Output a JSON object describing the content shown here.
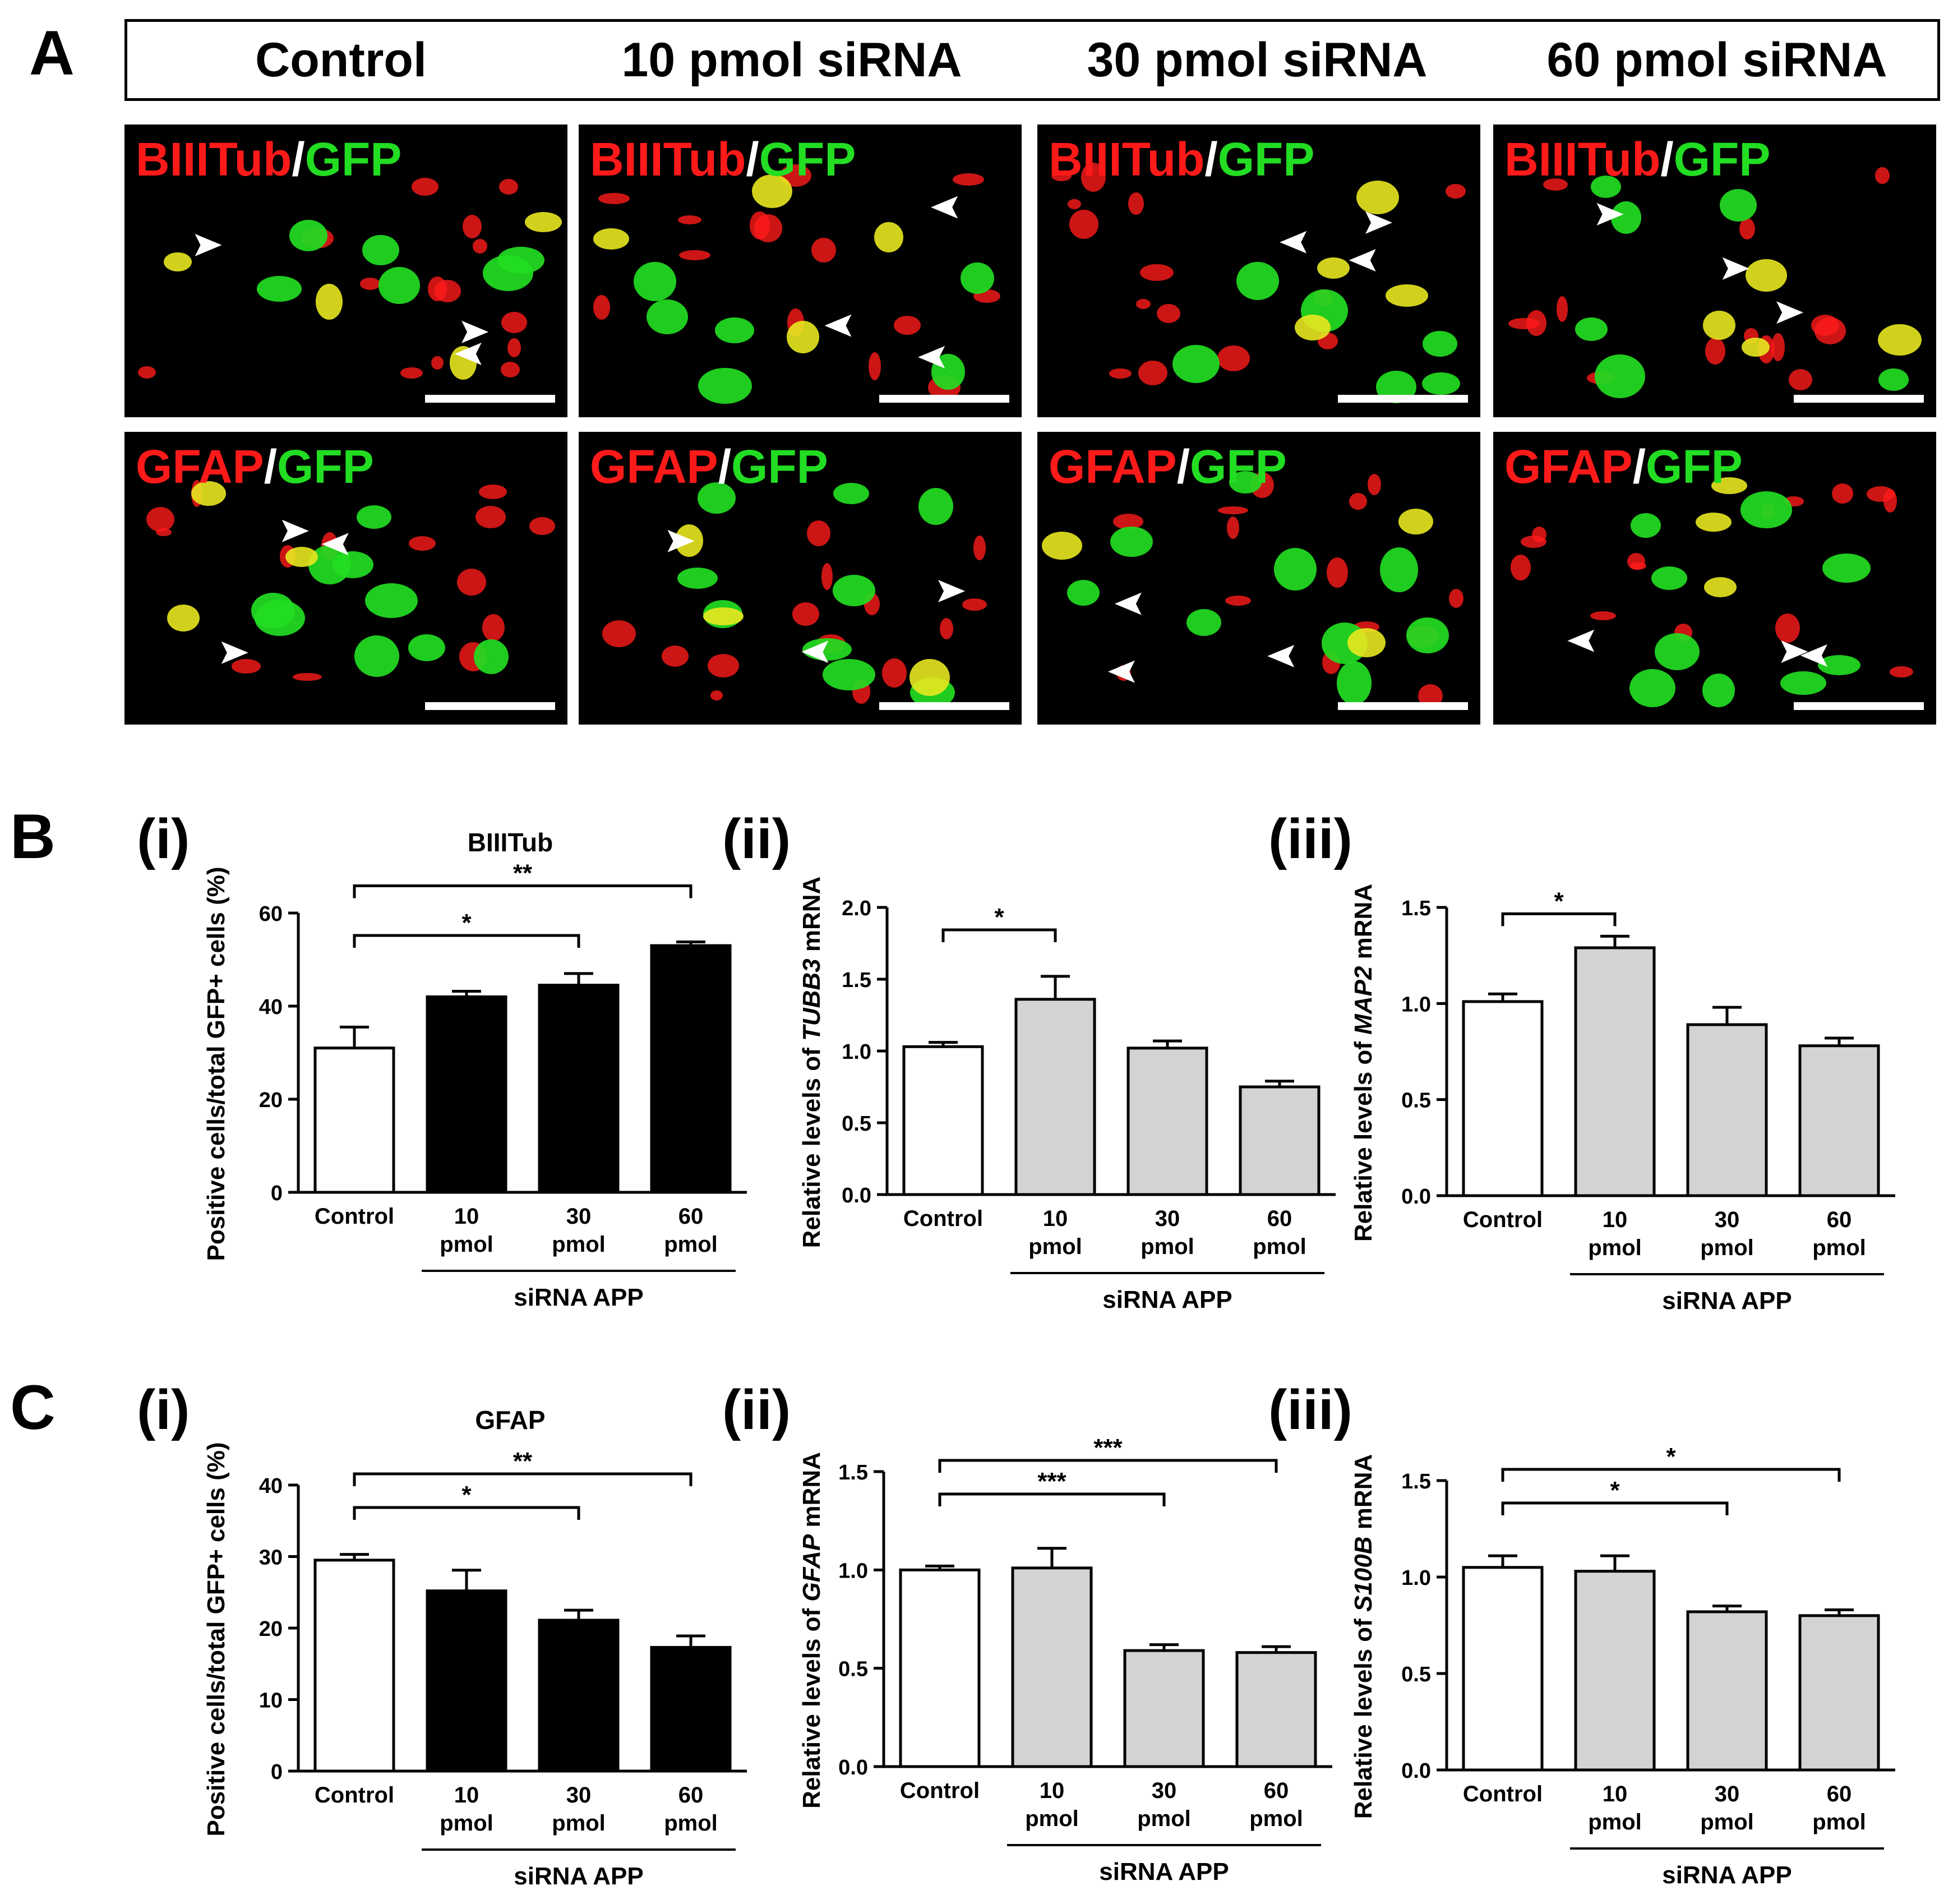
{
  "figure": {
    "panel_letters": [
      "A",
      "B",
      "C"
    ],
    "header": [
      "Control",
      "10 pmol siRNA",
      "30 pmol siRNA",
      "60 pmol siRNA"
    ],
    "rows": [
      {
        "marker": "BIIITub",
        "sep": "/",
        "reporter": "GFP"
      },
      {
        "marker": "GFAP",
        "sep": "/",
        "reporter": "GFP"
      }
    ],
    "colors": {
      "red": "#ff1a1a",
      "green": "#22dd22",
      "yellow": "#e8e820",
      "bar_black": "#000000",
      "bar_grey": "#d3d3d3"
    }
  },
  "chart_data": [
    {
      "id": "B-i",
      "panel": "B",
      "roman": "(i)",
      "type": "bar",
      "title": "BIIITub",
      "ylabel": "Positive cells/total GFP+ cells (%)",
      "categories": [
        [
          "Control"
        ],
        [
          "10",
          "pmol"
        ],
        [
          "30",
          "pmol"
        ],
        [
          "60",
          "pmol"
        ]
      ],
      "values": [
        31,
        42,
        44.5,
        53
      ],
      "errors": [
        4.5,
        1.2,
        2.5,
        0.8
      ],
      "fills": [
        "#ffffff",
        "#000000",
        "#000000",
        "#000000"
      ],
      "ylim": [
        0,
        60
      ],
      "yticks": [
        "0",
        "20",
        "40",
        "60"
      ],
      "group_label": "siRNA APP",
      "sig": [
        {
          "from": 0,
          "to": 2,
          "label": "*"
        },
        {
          "from": 0,
          "to": 3,
          "label": "**"
        }
      ]
    },
    {
      "id": "B-ii",
      "panel": "B",
      "roman": "(ii)",
      "type": "bar",
      "title": "",
      "ylabel_parts": [
        "Relative levels of ",
        "TUBB3",
        " mRNA"
      ],
      "categories": [
        [
          "Control"
        ],
        [
          "10",
          "pmol"
        ],
        [
          "30",
          "pmol"
        ],
        [
          "60",
          "pmol"
        ]
      ],
      "values": [
        1.03,
        1.36,
        1.02,
        0.75
      ],
      "errors": [
        0.03,
        0.16,
        0.05,
        0.04
      ],
      "fills": [
        "#ffffff",
        "#d3d3d3",
        "#d3d3d3",
        "#d3d3d3"
      ],
      "ylim": [
        0,
        2.0
      ],
      "yticks": [
        "0.0",
        "0.5",
        "1.0",
        "1.5",
        "2.0"
      ],
      "group_label": "siRNA APP",
      "sig": [
        {
          "from": 0,
          "to": 1,
          "label": "*"
        }
      ]
    },
    {
      "id": "B-iii",
      "panel": "B",
      "roman": "(iii)",
      "type": "bar",
      "title": "",
      "ylabel_parts": [
        "Relative levels of ",
        "MAP2",
        " mRNA"
      ],
      "categories": [
        [
          "Control"
        ],
        [
          "10",
          "pmol"
        ],
        [
          "30",
          "pmol"
        ],
        [
          "60",
          "pmol"
        ]
      ],
      "values": [
        1.01,
        1.29,
        0.89,
        0.78
      ],
      "errors": [
        0.04,
        0.06,
        0.09,
        0.04
      ],
      "fills": [
        "#ffffff",
        "#d3d3d3",
        "#d3d3d3",
        "#d3d3d3"
      ],
      "ylim": [
        0,
        1.5
      ],
      "yticks": [
        "0.0",
        "0.5",
        "1.0",
        "1.5"
      ],
      "group_label": "siRNA APP",
      "sig": [
        {
          "from": 0,
          "to": 1,
          "label": "*"
        }
      ]
    },
    {
      "id": "C-i",
      "panel": "C",
      "roman": "(i)",
      "type": "bar",
      "title": "GFAP",
      "ylabel": "Positive cells/total GFP+ cells (%)",
      "categories": [
        [
          "Control"
        ],
        [
          "10",
          "pmol"
        ],
        [
          "30",
          "pmol"
        ],
        [
          "60",
          "pmol"
        ]
      ],
      "values": [
        29.5,
        25.2,
        21.1,
        17.3
      ],
      "errors": [
        0.8,
        2.9,
        1.4,
        1.6
      ],
      "fills": [
        "#ffffff",
        "#000000",
        "#000000",
        "#000000"
      ],
      "ylim": [
        0,
        40
      ],
      "yticks": [
        "0",
        "10",
        "20",
        "30",
        "40"
      ],
      "group_label": "siRNA APP",
      "sig": [
        {
          "from": 0,
          "to": 2,
          "label": "*"
        },
        {
          "from": 0,
          "to": 3,
          "label": "**"
        }
      ]
    },
    {
      "id": "C-ii",
      "panel": "C",
      "roman": "(ii)",
      "type": "bar",
      "title": "",
      "ylabel_parts": [
        "Relative levels of ",
        "GFAP",
        " mRNA"
      ],
      "categories": [
        [
          "Control"
        ],
        [
          "10",
          "pmol"
        ],
        [
          "30",
          "pmol"
        ],
        [
          "60",
          "pmol"
        ]
      ],
      "values": [
        1.0,
        1.01,
        0.59,
        0.58
      ],
      "errors": [
        0.02,
        0.1,
        0.03,
        0.03
      ],
      "fills": [
        "#ffffff",
        "#d3d3d3",
        "#d3d3d3",
        "#d3d3d3"
      ],
      "ylim": [
        0,
        1.5
      ],
      "yticks": [
        "0.0",
        "0.5",
        "1.0",
        "1.5"
      ],
      "group_label": "siRNA APP",
      "sig": [
        {
          "from": 0,
          "to": 2,
          "label": "***"
        },
        {
          "from": 0,
          "to": 3,
          "label": "***"
        }
      ]
    },
    {
      "id": "C-iii",
      "panel": "C",
      "roman": "(iii)",
      "type": "bar",
      "title": "",
      "ylabel_parts": [
        "Relative levels of ",
        "S100B",
        " mRNA"
      ],
      "categories": [
        [
          "Control"
        ],
        [
          "10",
          "pmol"
        ],
        [
          "30",
          "pmol"
        ],
        [
          "60",
          "pmol"
        ]
      ],
      "values": [
        1.05,
        1.03,
        0.82,
        0.8
      ],
      "errors": [
        0.06,
        0.08,
        0.03,
        0.03
      ],
      "fills": [
        "#ffffff",
        "#d3d3d3",
        "#d3d3d3",
        "#d3d3d3"
      ],
      "ylim": [
        0,
        1.5
      ],
      "yticks": [
        "0.0",
        "0.5",
        "1.0",
        "1.5"
      ],
      "group_label": "siRNA APP",
      "sig": [
        {
          "from": 0,
          "to": 2,
          "label": "*"
        },
        {
          "from": 0,
          "to": 3,
          "label": "*"
        }
      ]
    }
  ]
}
